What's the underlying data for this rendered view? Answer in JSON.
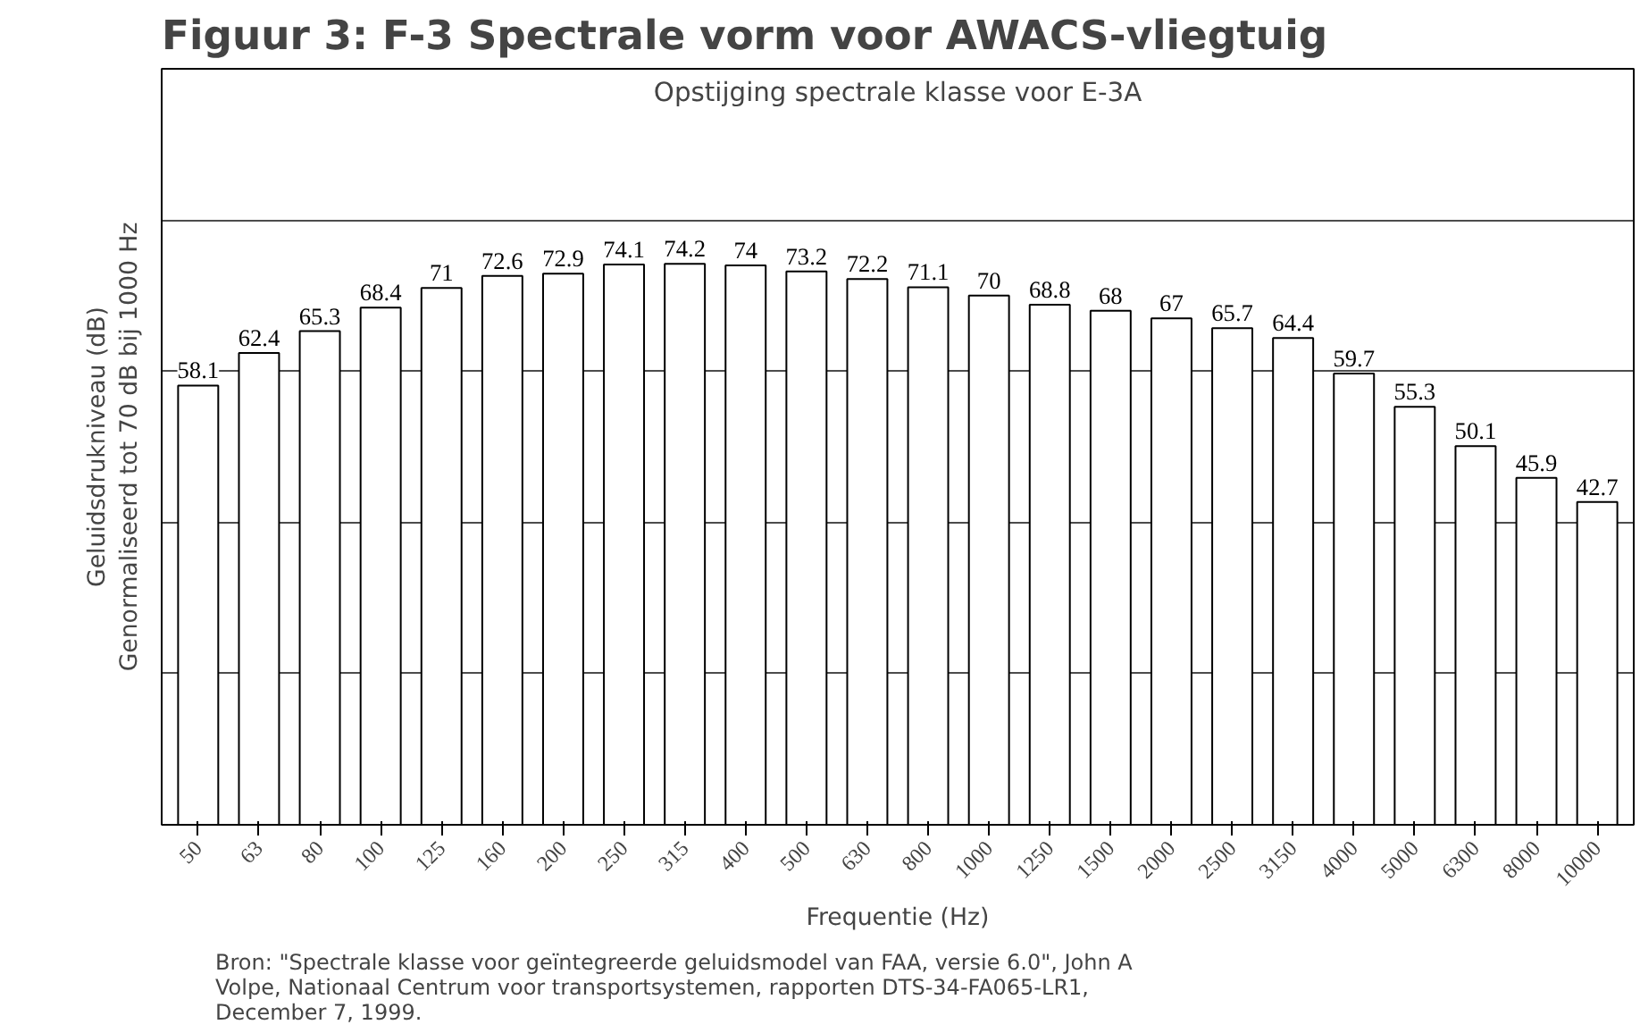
{
  "chart_data": {
    "type": "bar",
    "title": "Figuur 3: F-3 Spectrale vorm voor AWACS-vliegtuig",
    "subtitle": "Opstijging spectrale klasse voor E-3A",
    "xlabel": "Frequentie (Hz)",
    "ylabel": "Geluidsdrukniveau (dB)\nGenormaliseerd tot 70 dB bij 1000 Hz",
    "categories": [
      "50",
      "63",
      "80",
      "100",
      "125",
      "160",
      "200",
      "250",
      "315",
      "400",
      "500",
      "630",
      "800",
      "1000",
      "1250",
      "1500",
      "2000",
      "2500",
      "3150",
      "4000",
      "5000",
      "6300",
      "8000",
      "10000"
    ],
    "values": [
      58.1,
      62.4,
      65.3,
      68.4,
      71,
      72.6,
      72.9,
      74.1,
      74.2,
      74,
      73.2,
      72.2,
      71.1,
      70,
      68.8,
      68,
      67,
      65.7,
      64.4,
      59.7,
      55.3,
      50.1,
      45.9,
      42.7
    ],
    "color": "#ffffff",
    "data_labels": true,
    "ylim": [
      0,
      100
    ],
    "yticks": [
      {
        "value": 0,
        "label": null
      },
      {
        "value": 20,
        "label": null
      },
      {
        "value": 40,
        "label": null
      },
      {
        "value": 60,
        "label": null
      },
      {
        "value": 80,
        "label": null
      },
      {
        "value": 100,
        "label": null
      }
    ],
    "grid": "y",
    "tick_labels": "x",
    "annotations": [
      "Bron: \"Spectrale klasse voor geïntegreerde geluidsmodel van FAA, versie 6.0\", John A\nVolpe, Nationaal Centrum voor transportsystemen, rapporten DTS-34-FA065-LR1,\nDecember 7, 1999."
    ]
  }
}
